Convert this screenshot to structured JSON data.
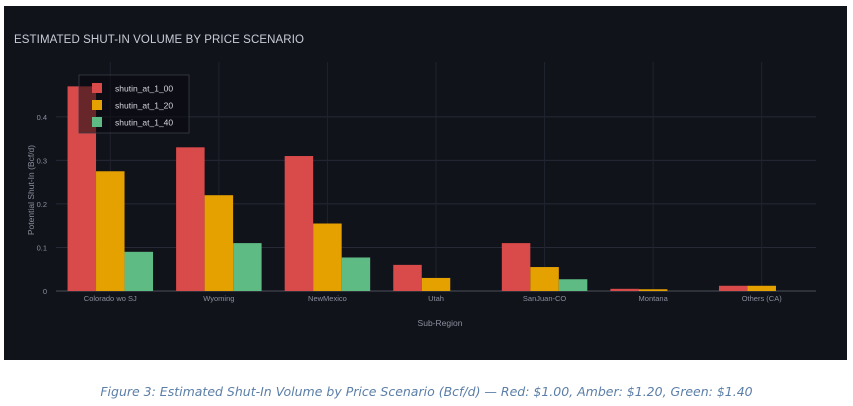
{
  "panel": {
    "title": "ESTIMATED SHUT-IN VOLUME BY PRICE SCENARIO"
  },
  "caption": "Figure 3: Estimated Shut-In Volume by Price Scenario (Bcf/d) — Red: $1.00, Amber: $1.20, Green: $1.40",
  "chart_data": {
    "type": "bar",
    "title": "ESTIMATED SHUT-IN VOLUME BY PRICE SCENARIO",
    "xlabel": "Sub-Region",
    "ylabel": "Potential Shut-In (Bcf/d)",
    "ylim": [
      0,
      0.48
    ],
    "yticks": [
      0,
      0.1,
      0.2,
      0.3,
      0.4
    ],
    "ytick_labels": [
      "0",
      "0.1",
      "0.2",
      "0.3",
      "0.4"
    ],
    "grid": true,
    "legend_position": "top-left",
    "categories": [
      "Colorado wo SJ",
      "Wyoming",
      "NewMexico",
      "Utah",
      "SanJuan-CO",
      "Montana",
      "Others (CA)"
    ],
    "series": [
      {
        "name": "shutin_at_1_00",
        "color": "#d94a4a",
        "values": [
          0.47,
          0.33,
          0.31,
          0.06,
          0.11,
          0.005,
          0.012
        ]
      },
      {
        "name": "shutin_at_1_20",
        "color": "#e5a100",
        "values": [
          0.275,
          0.22,
          0.155,
          0.03,
          0.055,
          0.004,
          0.012
        ]
      },
      {
        "name": "shutin_at_1_40",
        "color": "#5dbb83",
        "values": [
          0.09,
          0.11,
          0.077,
          0.0,
          0.027,
          0.0,
          0.0
        ]
      }
    ]
  }
}
